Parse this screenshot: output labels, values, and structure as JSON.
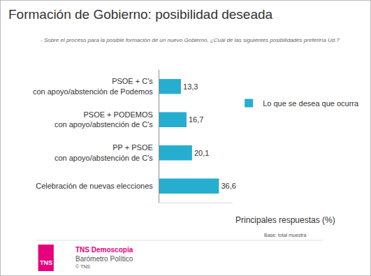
{
  "chart_data": {
    "type": "bar",
    "orientation": "horizontal",
    "title": "Formación de Gobierno: posibilidad deseada",
    "subtitle": "- Sobre el proceso para la posible formación de un nuevo Gobierno, ¿Cuál de las siguientes posibilidades preferiría Ud.?",
    "categories": [
      "PSOE + C's\ncon apoyo/abstención de Podemos",
      "PSOE + PODEMOS\ncon apoyo/abstención de C's",
      "PP + PSOE\ncon apoyo/abstención de C's",
      "Celebración de nuevas elecciones"
    ],
    "series": [
      {
        "name": "Lo que se desea que ocurra",
        "color": "#26aed0",
        "values": [
          13.3,
          16.7,
          20.1,
          36.6
        ],
        "value_labels": [
          "13,3",
          "16,7",
          "20,1",
          "36,6"
        ]
      }
    ],
    "xlim": [
      0,
      45
    ],
    "xticks": [],
    "tick_labels": "y",
    "grid": false,
    "legend": "right",
    "data_labels": true,
    "annotations": [
      "Principales respuestas (%)",
      "Base: total muestra",
      "TNS Demoscopia",
      "Barómetro Político",
      "© TNS",
      "TNS"
    ]
  }
}
